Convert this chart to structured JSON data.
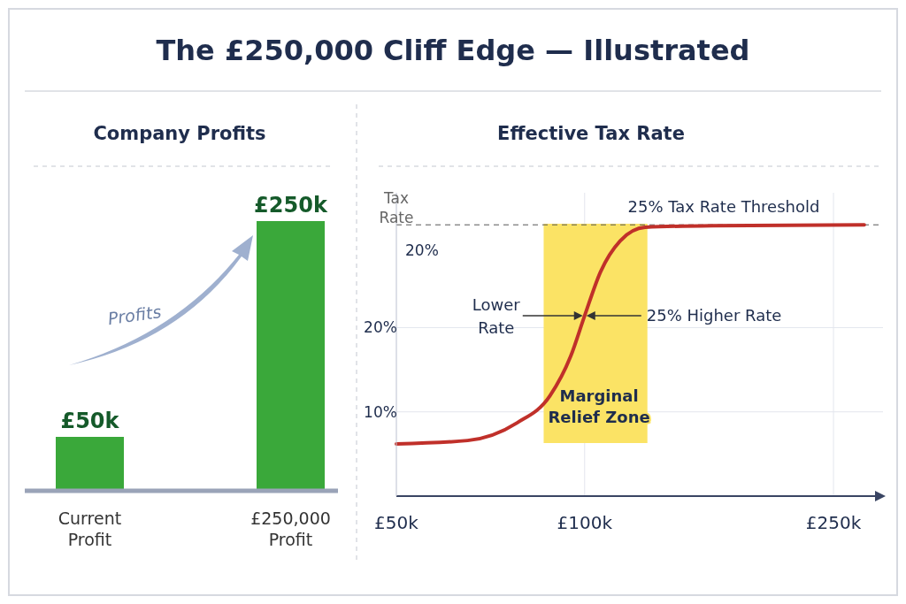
{
  "chart_data": [
    {
      "type": "other",
      "title": "The £250,000 Cliff Edge — Illustrated"
    },
    {
      "type": "bar",
      "title": "Company Profits",
      "categories": [
        "Current Profit",
        "£250,000 Profit"
      ],
      "values": [
        50,
        250
      ],
      "value_labels": [
        "£50k",
        "£250k"
      ],
      "color": "#3aa83a",
      "annotations": [
        "Profits"
      ]
    },
    {
      "type": "line",
      "title": "Effective Tax Rate",
      "ylabel": "Tax Rate",
      "log": "x",
      "xlim": [
        50,
        300
      ],
      "ylim": [
        0,
        36
      ],
      "xticks": [
        {
          "value": 50,
          "label": "£50k"
        },
        {
          "value": 100,
          "label": "£100k"
        },
        {
          "value": 250,
          "label": "£250k"
        }
      ],
      "yticks": [
        {
          "value": 10,
          "label": "10%"
        },
        {
          "value": 20,
          "label": "20%"
        }
      ],
      "grid": true,
      "x": [
        50,
        65,
        78,
        88,
        95,
        100,
        106,
        114,
        125,
        160,
        280
      ],
      "series": [
        {
          "color": "#c0302a",
          "values": [
            6.2,
            6.6,
            8.7,
            11.9,
            16.6,
            21.4,
            26.6,
            30.3,
            31.9,
            32.1,
            32.2
          ]
        }
      ],
      "ref_lines": [
        {
          "axis": "y",
          "value": 32.2,
          "label": "25% Tax Rate Threshold",
          "line_style": "dashed"
        }
      ],
      "bands": [
        {
          "axis": "x",
          "from": 86,
          "to": 126,
          "label": "Marginal Relief Zone",
          "color": "#fbe365"
        }
      ],
      "annotations": [
        {
          "text": "Lower Rate",
          "x": 100,
          "y": 21.4
        },
        {
          "text": "25% Higher Rate",
          "x": 100,
          "y": 21.4
        },
        "20%"
      ]
    }
  ]
}
